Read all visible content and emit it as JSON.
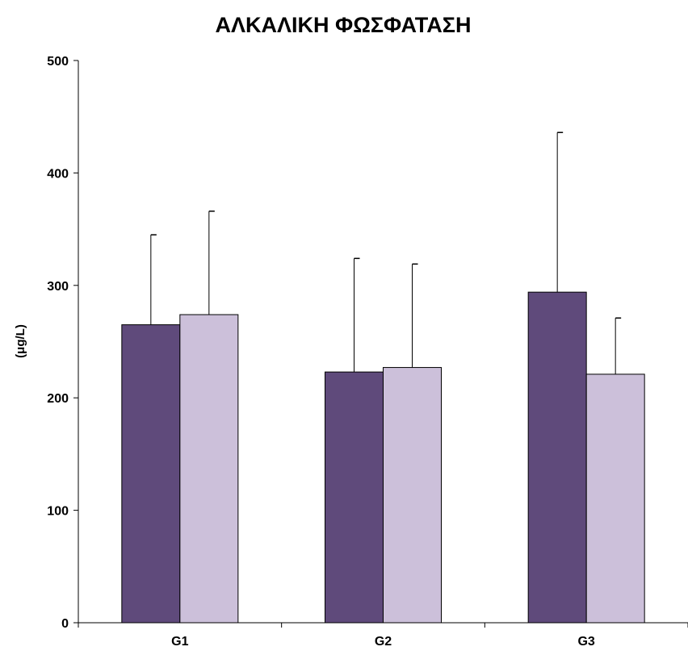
{
  "chart_data": {
    "type": "bar",
    "title": "ΑΛΚΑΛΙΚΗ ΦΩΣΦΑΤΑΣΗ",
    "xlabel": "",
    "ylabel": "(μg/L)",
    "ylim": [
      0,
      500
    ],
    "yticks": [
      "0",
      "100",
      "200",
      "300",
      "400",
      "500"
    ],
    "categories": [
      "G1",
      "G2",
      "G3"
    ],
    "grid": false,
    "legend": "none",
    "series": [
      {
        "color": "#5f4a7b",
        "values": [
          265,
          223,
          294
        ],
        "error_plus": [
          80,
          101,
          142
        ]
      },
      {
        "color": "#ccc0da",
        "values": [
          274,
          227,
          221
        ],
        "error_plus": [
          92,
          92,
          50
        ]
      }
    ]
  }
}
